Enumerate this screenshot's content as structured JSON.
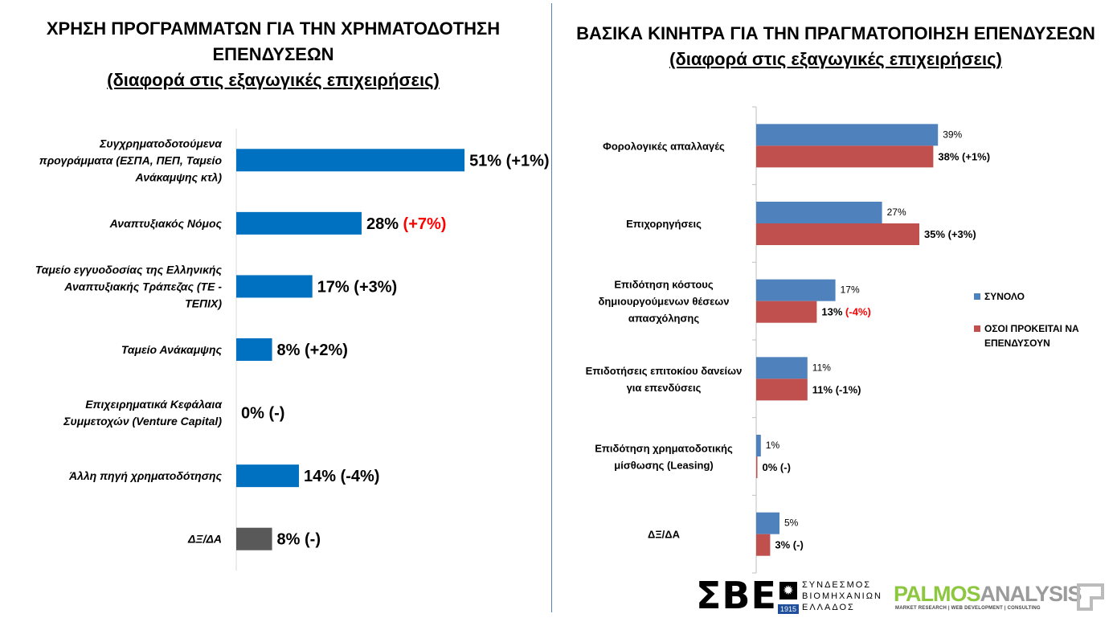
{
  "left": {
    "title_line1": "ΧΡΗΣΗ ΠΡΟΓΡΑΜΜΑΤΩΝ ΓΙΑ ΤΗΝ ΧΡΗΜΑΤΟΔΟΤΗΣΗ",
    "title_line2": "ΕΠΕΝΔΥΣΕΩΝ",
    "subtitle": "(διαφορά στις εξαγωγικές επιχειρήσεις)"
  },
  "right": {
    "title": "ΒΑΣΙΚΑ ΚΙΝΗΤΡΑ ΓΙΑ ΤΗΝ ΠΡΑΓΜΑΤΟΠΟΙΗΣΗ ΕΠΕΝΔΥΣΕΩΝ",
    "subtitle": "(διαφορά στις εξαγωγικές επιχειρήσεις)"
  },
  "colors": {
    "left_bar": "#0070c0",
    "left_bar_dk": "#595959",
    "series_total": "#4f81bd",
    "series_investors": "#c0504d",
    "diff_highlight": "#ff0000"
  },
  "logos": {
    "sbe_mark": "ΣΒΕ",
    "sbe_line1": "ΣΥΝΔΕΣΜΟΣ",
    "sbe_line2": "ΒΙΟΜΗΧΑΝΙΩΝ",
    "sbe_line3": "ΕΛΛΑΔΟΣ",
    "sbe_year": "1915",
    "palmos_part1": "PALMOS",
    "palmos_part2": "ANALYSIS",
    "palmos_tagline": "MARKET RESEARCH | WEB DEVELOPMENT | CONSULTING"
  },
  "chart_data": [
    {
      "type": "bar",
      "orientation": "horizontal",
      "categories": [
        [
          "Συγχρηματοδοτούμενα",
          "προγράμματα (ΕΣΠΑ, ΠΕΠ, Ταμείο",
          "Ανάκαμψης κτλ)"
        ],
        [
          "Αναπτυξιακός Νόμος"
        ],
        [
          "Ταμείο εγγυοδοσίας της Ελληνικής",
          "Αναπτυξιακής Τράπεζας (ΤΕ -",
          "ΤΕΠΙΧ)"
        ],
        [
          "Ταμείο Ανάκαμψης"
        ],
        [
          "Επιχειρηματικά Κεφάλαια",
          "Συμμετοχών (Venture Capital)"
        ],
        [
          "Άλλη πηγή χρηματοδότησης"
        ],
        [
          "ΔΞ/ΔΑ"
        ]
      ],
      "values": [
        51,
        28,
        17,
        8,
        0,
        14,
        8
      ],
      "value_labels": [
        "51%",
        "28%",
        "17%",
        "8%",
        "0%",
        "14%",
        "8%"
      ],
      "diff_labels": [
        "(+1%)",
        "(+7%)",
        "(+3%)",
        "(+2%)",
        "(-)",
        "(-4%)",
        "(-)"
      ],
      "diff_highlight": [
        false,
        true,
        false,
        false,
        false,
        false,
        false
      ],
      "bar_dark": [
        false,
        false,
        false,
        false,
        false,
        false,
        true
      ],
      "xlim": [
        0,
        100
      ]
    },
    {
      "type": "bar",
      "orientation": "horizontal",
      "categories": [
        [
          "Φορολογικές απαλλαγές"
        ],
        [
          "Επιχορηγήσεις"
        ],
        [
          "Επιδότηση κόστους",
          "δημιουργούμενων θέσεων",
          "απασχόλησης"
        ],
        [
          "Επιδοτήσεις επιτοκίου δανείων",
          "για επενδύσεις"
        ],
        [
          "Επιδότηση χρηματοδοτικής",
          "μίσθωσης (Leasing)"
        ],
        [
          "ΔΞ/ΔΑ"
        ]
      ],
      "series": [
        {
          "name": "ΣΥΝΟΛΟ",
          "values": [
            39,
            27,
            17,
            11,
            1,
            5
          ],
          "labels": [
            "39%",
            "27%",
            "17%",
            "11%",
            "1%",
            "5%"
          ]
        },
        {
          "name": "ΟΣΟΙ ΠΡΟΚΕΙΤΑΙ ΝΑ ΕΠΕΝΔΥΣΟΥΝ",
          "values": [
            38,
            35,
            13,
            11,
            0,
            3
          ],
          "labels": [
            "38%",
            "35%",
            "13%",
            "11%",
            "0%",
            "3%"
          ],
          "diff_labels": [
            "(+1%)",
            "(+3%)",
            "(-4%)",
            "(-1%)",
            "(-)",
            "(-)"
          ],
          "diff_highlight": [
            false,
            false,
            true,
            false,
            false,
            false
          ]
        }
      ],
      "legend": "right",
      "xlim": [
        0,
        100
      ]
    }
  ]
}
